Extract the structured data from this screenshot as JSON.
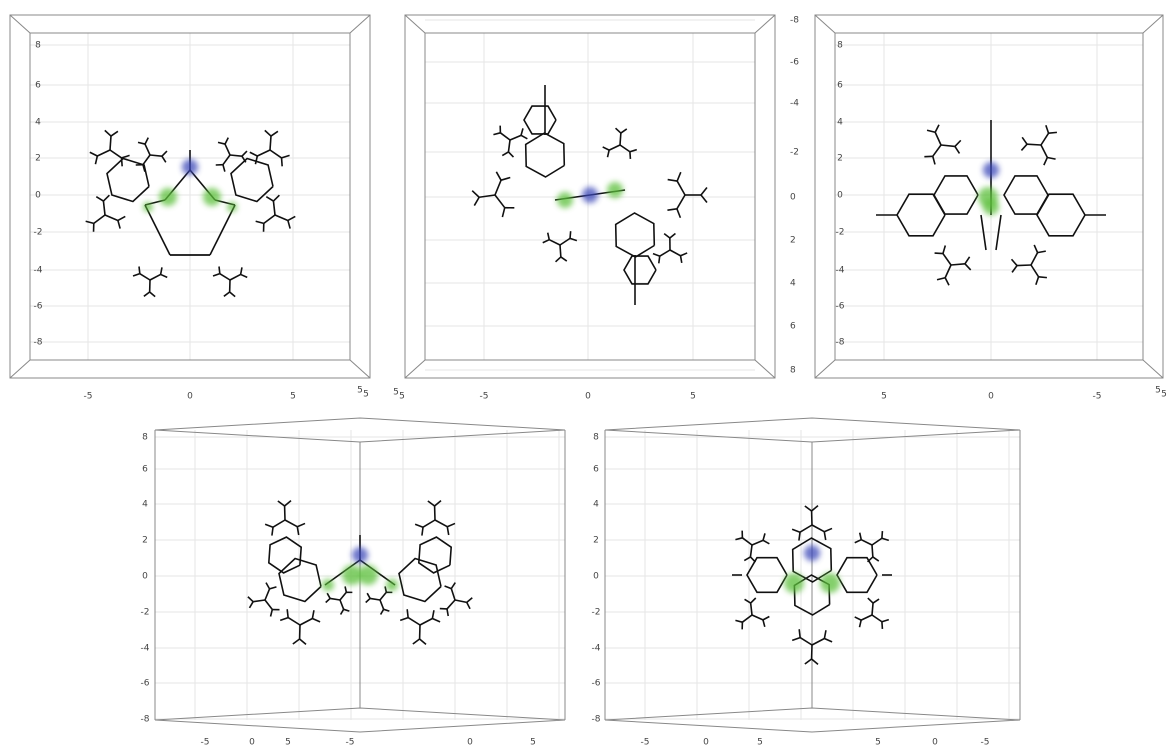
{
  "panels": [
    {
      "yticks": [
        "8",
        "6",
        "4",
        "2",
        "0",
        "-2",
        "-4",
        "-6",
        "-8"
      ],
      "xticks": [
        "-5",
        "0",
        "5"
      ],
      "corner": [
        "5",
        "5"
      ]
    },
    {
      "yticks": [
        "-8",
        "-6",
        "-4",
        "-2",
        "0",
        "2",
        "4",
        "6",
        "8"
      ],
      "xticks": [
        "-5",
        "0",
        "5"
      ],
      "corner": [
        "5",
        "5"
      ]
    },
    {
      "yticks": [
        "8",
        "6",
        "4",
        "2",
        "0",
        "-2",
        "-4",
        "-6",
        "-8"
      ],
      "xticks": [
        "5",
        "0",
        "-5"
      ],
      "corner": [
        "5",
        "5"
      ]
    },
    {
      "yticks": [
        "8",
        "6",
        "4",
        "2",
        "0",
        "-2",
        "-4",
        "-6",
        "-8"
      ],
      "xticks": [
        "-5",
        "0",
        "5",
        "-5",
        "0",
        "5"
      ]
    },
    {
      "yticks": [
        "8",
        "6",
        "4",
        "2",
        "0",
        "-2",
        "-4",
        "-6",
        "-8"
      ],
      "xticks": [
        "-5",
        "0",
        "5",
        "5",
        "0",
        "-5"
      ]
    }
  ]
}
